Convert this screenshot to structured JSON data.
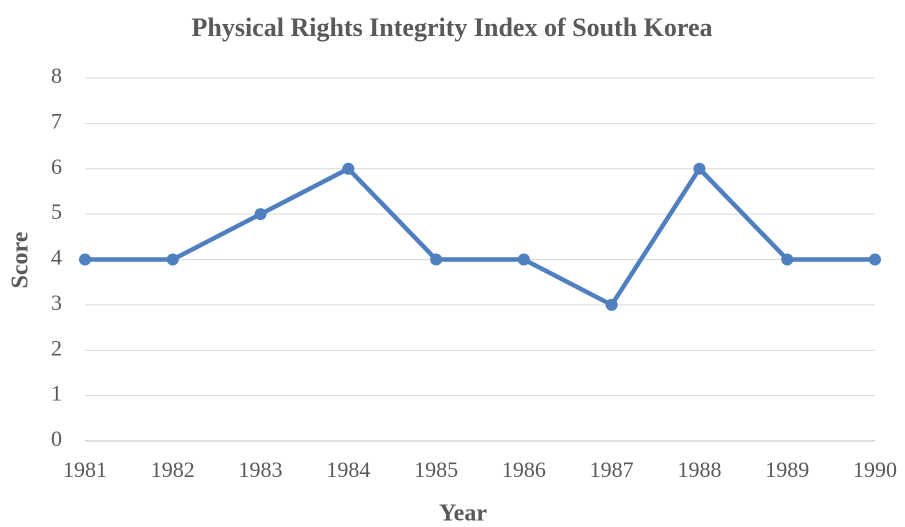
{
  "chart_data": {
    "type": "line",
    "title": "Physical Rights Integrity Index of South Korea",
    "x_label": "Year",
    "y_label": "Score",
    "x": [
      1981,
      1982,
      1983,
      1984,
      1985,
      1986,
      1987,
      1988,
      1989,
      1990
    ],
    "values": [
      4,
      4,
      5,
      6,
      4,
      4,
      3,
      6,
      4,
      4
    ],
    "color": "#4f7fbf",
    "xlim": [
      1981,
      1990
    ],
    "xticks": [
      1981,
      1982,
      1983,
      1984,
      1985,
      1986,
      1987,
      1988,
      1989,
      1990
    ],
    "ylim": [
      0,
      8
    ],
    "yticks": [
      0,
      1,
      2,
      3,
      4,
      5,
      6,
      7,
      8
    ],
    "grid": true
  }
}
